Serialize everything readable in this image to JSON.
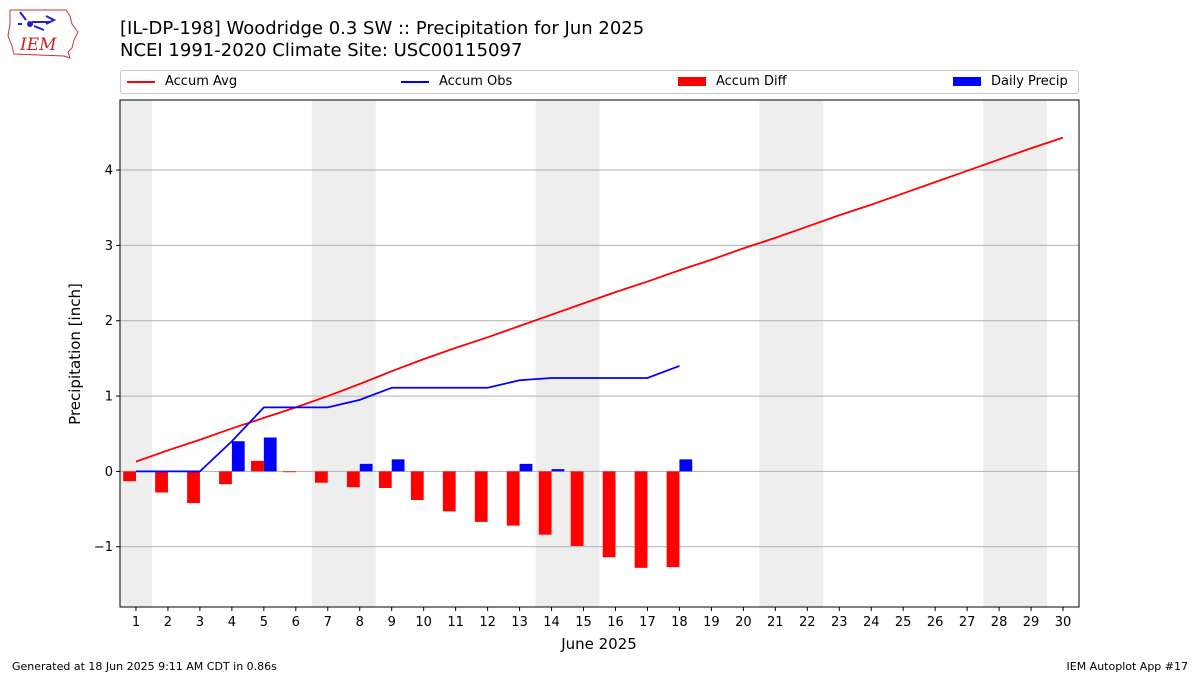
{
  "header": {
    "title_line1": "[IL-DP-198] Woodridge 0.3 SW :: Precipitation for Jun 2025",
    "title_line2": "NCEI 1991-2020 Climate Site: USC00115097",
    "logo_text": "IEM"
  },
  "legend": {
    "items": [
      {
        "label": "Accum Avg",
        "color": "#ff0000"
      },
      {
        "label": "Accum Obs",
        "color": "#0000ff"
      },
      {
        "label": "Accum Diff",
        "color": "#ff0000"
      },
      {
        "label": "Daily Precip",
        "color": "#0000ff"
      }
    ]
  },
  "footer": {
    "left": "Generated at 18 Jun 2025 9:11 AM CDT in 0.86s",
    "right": "IEM Autoplot App #17"
  },
  "chart_data": {
    "type": "bar",
    "xlabel": "June 2025",
    "ylabel": "Precipitation [inch]",
    "xlim": [
      0.5,
      30.5
    ],
    "ylim": [
      -1.8,
      4.93
    ],
    "yticks": [
      -1,
      0,
      1,
      2,
      3,
      4
    ],
    "ytick_labels": [
      "−1",
      "0",
      "1",
      "2",
      "3",
      "4"
    ],
    "days": [
      1,
      2,
      3,
      4,
      5,
      6,
      7,
      8,
      9,
      10,
      11,
      12,
      13,
      14,
      15,
      16,
      17,
      18,
      19,
      20,
      21,
      22,
      23,
      24,
      25,
      26,
      27,
      28,
      29,
      30
    ],
    "weekend_bands": [
      [
        0.5,
        1.5
      ],
      [
        6.5,
        8.5
      ],
      [
        13.5,
        15.5
      ],
      [
        20.5,
        22.5
      ],
      [
        27.5,
        29.5
      ]
    ],
    "grid": "horizontal",
    "colors": {
      "avg": "#ff0000",
      "obs": "#0000ff",
      "diff": "#ff0000",
      "daily": "#0000ff",
      "band": "#eeeeee"
    },
    "series": [
      {
        "name": "Accum Avg",
        "kind": "line",
        "values": [
          0.13,
          0.28,
          0.42,
          0.57,
          0.71,
          0.85,
          1.0,
          1.16,
          1.33,
          1.49,
          1.64,
          1.78,
          1.93,
          2.08,
          2.23,
          2.38,
          2.52,
          2.67,
          2.81,
          2.96,
          3.1,
          3.25,
          3.4,
          3.54,
          3.69,
          3.84,
          3.99,
          4.14,
          4.29,
          4.43
        ]
      },
      {
        "name": "Accum Obs",
        "kind": "line",
        "values": [
          0.0,
          0.0,
          0.0,
          0.4,
          0.85,
          0.85,
          0.85,
          0.95,
          1.11,
          1.11,
          1.11,
          1.11,
          1.21,
          1.24,
          1.24,
          1.24,
          1.24,
          1.4
        ]
      },
      {
        "name": "Accum Diff",
        "kind": "bar",
        "values": [
          -0.13,
          -0.28,
          -0.42,
          -0.17,
          0.14,
          0.0,
          -0.15,
          -0.21,
          -0.22,
          -0.38,
          -0.53,
          -0.67,
          -0.72,
          -0.84,
          -0.99,
          -1.14,
          -1.28,
          -1.27
        ]
      },
      {
        "name": "Daily Precip",
        "kind": "bar",
        "values": [
          0.0,
          0.0,
          0.0,
          0.4,
          0.45,
          0.0,
          0.0,
          0.1,
          0.16,
          0.0,
          0.0,
          0.0,
          0.1,
          0.03,
          0.0,
          0.0,
          0.0,
          0.16
        ]
      }
    ]
  }
}
